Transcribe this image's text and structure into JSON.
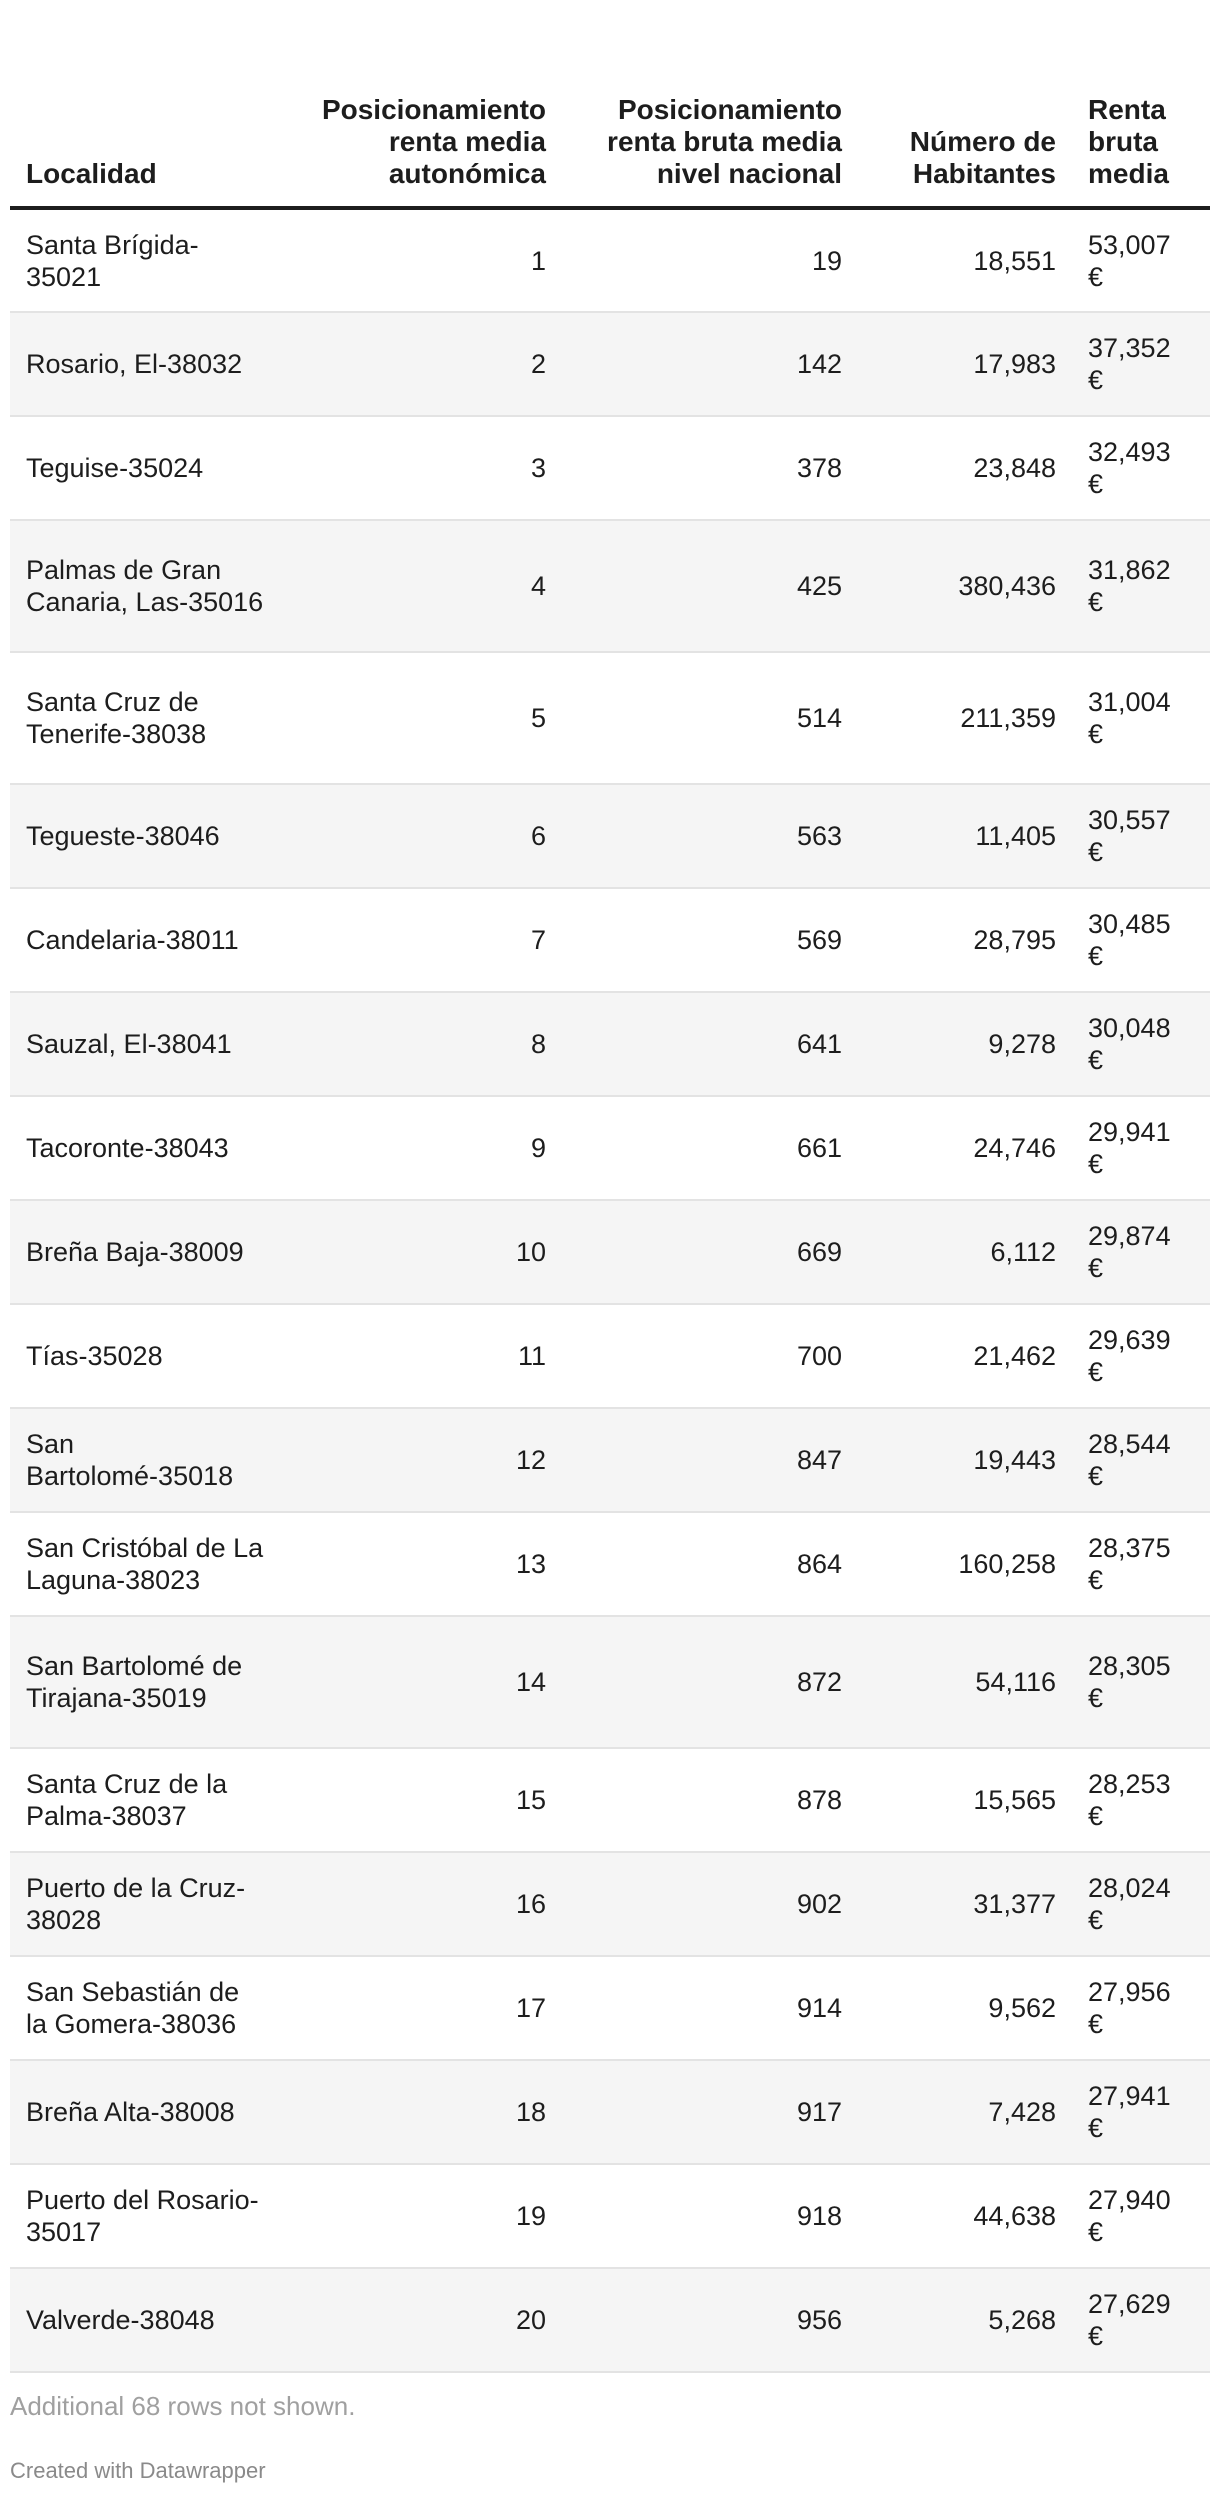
{
  "chart_data": {
    "type": "table",
    "columns": [
      "Localidad",
      "Posicionamiento renta media autonómica",
      "Posicionamiento renta bruta media nivel nacional",
      "Número de Habitantes",
      "Renta bruta media"
    ],
    "rows": [
      [
        "Santa Brígida-35021",
        "1",
        "19",
        "18,551",
        "53,007 €"
      ],
      [
        "Rosario, El-38032",
        "2",
        "142",
        "17,983",
        "37,352 €"
      ],
      [
        "Teguise-35024",
        "3",
        "378",
        "23,848",
        "32,493 €"
      ],
      [
        "Palmas de Gran Canaria, Las-35016",
        "4",
        "425",
        "380,436",
        "31,862 €"
      ],
      [
        "Santa Cruz de Tenerife-38038",
        "5",
        "514",
        "211,359",
        "31,004 €"
      ],
      [
        "Tegueste-38046",
        "6",
        "563",
        "11,405",
        "30,557 €"
      ],
      [
        "Candelaria-38011",
        "7",
        "569",
        "28,795",
        "30,485 €"
      ],
      [
        "Sauzal, El-38041",
        "8",
        "641",
        "9,278",
        "30,048 €"
      ],
      [
        "Tacoronte-38043",
        "9",
        "661",
        "24,746",
        "29,941 €"
      ],
      [
        "Breña Baja-38009",
        "10",
        "669",
        "6,112",
        "29,874 €"
      ],
      [
        "Tías-35028",
        "11",
        "700",
        "21,462",
        "29,639 €"
      ],
      [
        "San Bartolomé-35018",
        "12",
        "847",
        "19,443",
        "28,544 €"
      ],
      [
        "San Cristóbal de La Laguna-38023",
        "13",
        "864",
        "160,258",
        "28,375 €"
      ],
      [
        "San Bartolomé de Tirajana-35019",
        "14",
        "872",
        "54,116",
        "28,305 €"
      ],
      [
        "Santa Cruz de la Palma-38037",
        "15",
        "878",
        "15,565",
        "28,253 €"
      ],
      [
        "Puerto de la Cruz-38028",
        "16",
        "902",
        "31,377",
        "28,024 €"
      ],
      [
        "San Sebastián de la Gomera-38036",
        "17",
        "914",
        "9,562",
        "27,956 €"
      ],
      [
        "Breña Alta-38008",
        "18",
        "917",
        "7,428",
        "27,941 €"
      ],
      [
        "Puerto del Rosario-35017",
        "19",
        "918",
        "44,638",
        "27,940 €"
      ],
      [
        "Valverde-38048",
        "20",
        "956",
        "5,268",
        "27,629 €"
      ]
    ]
  },
  "footer": {
    "rows_note": "Additional 68 rows not shown.",
    "credit": "Created with Datawrapper"
  }
}
